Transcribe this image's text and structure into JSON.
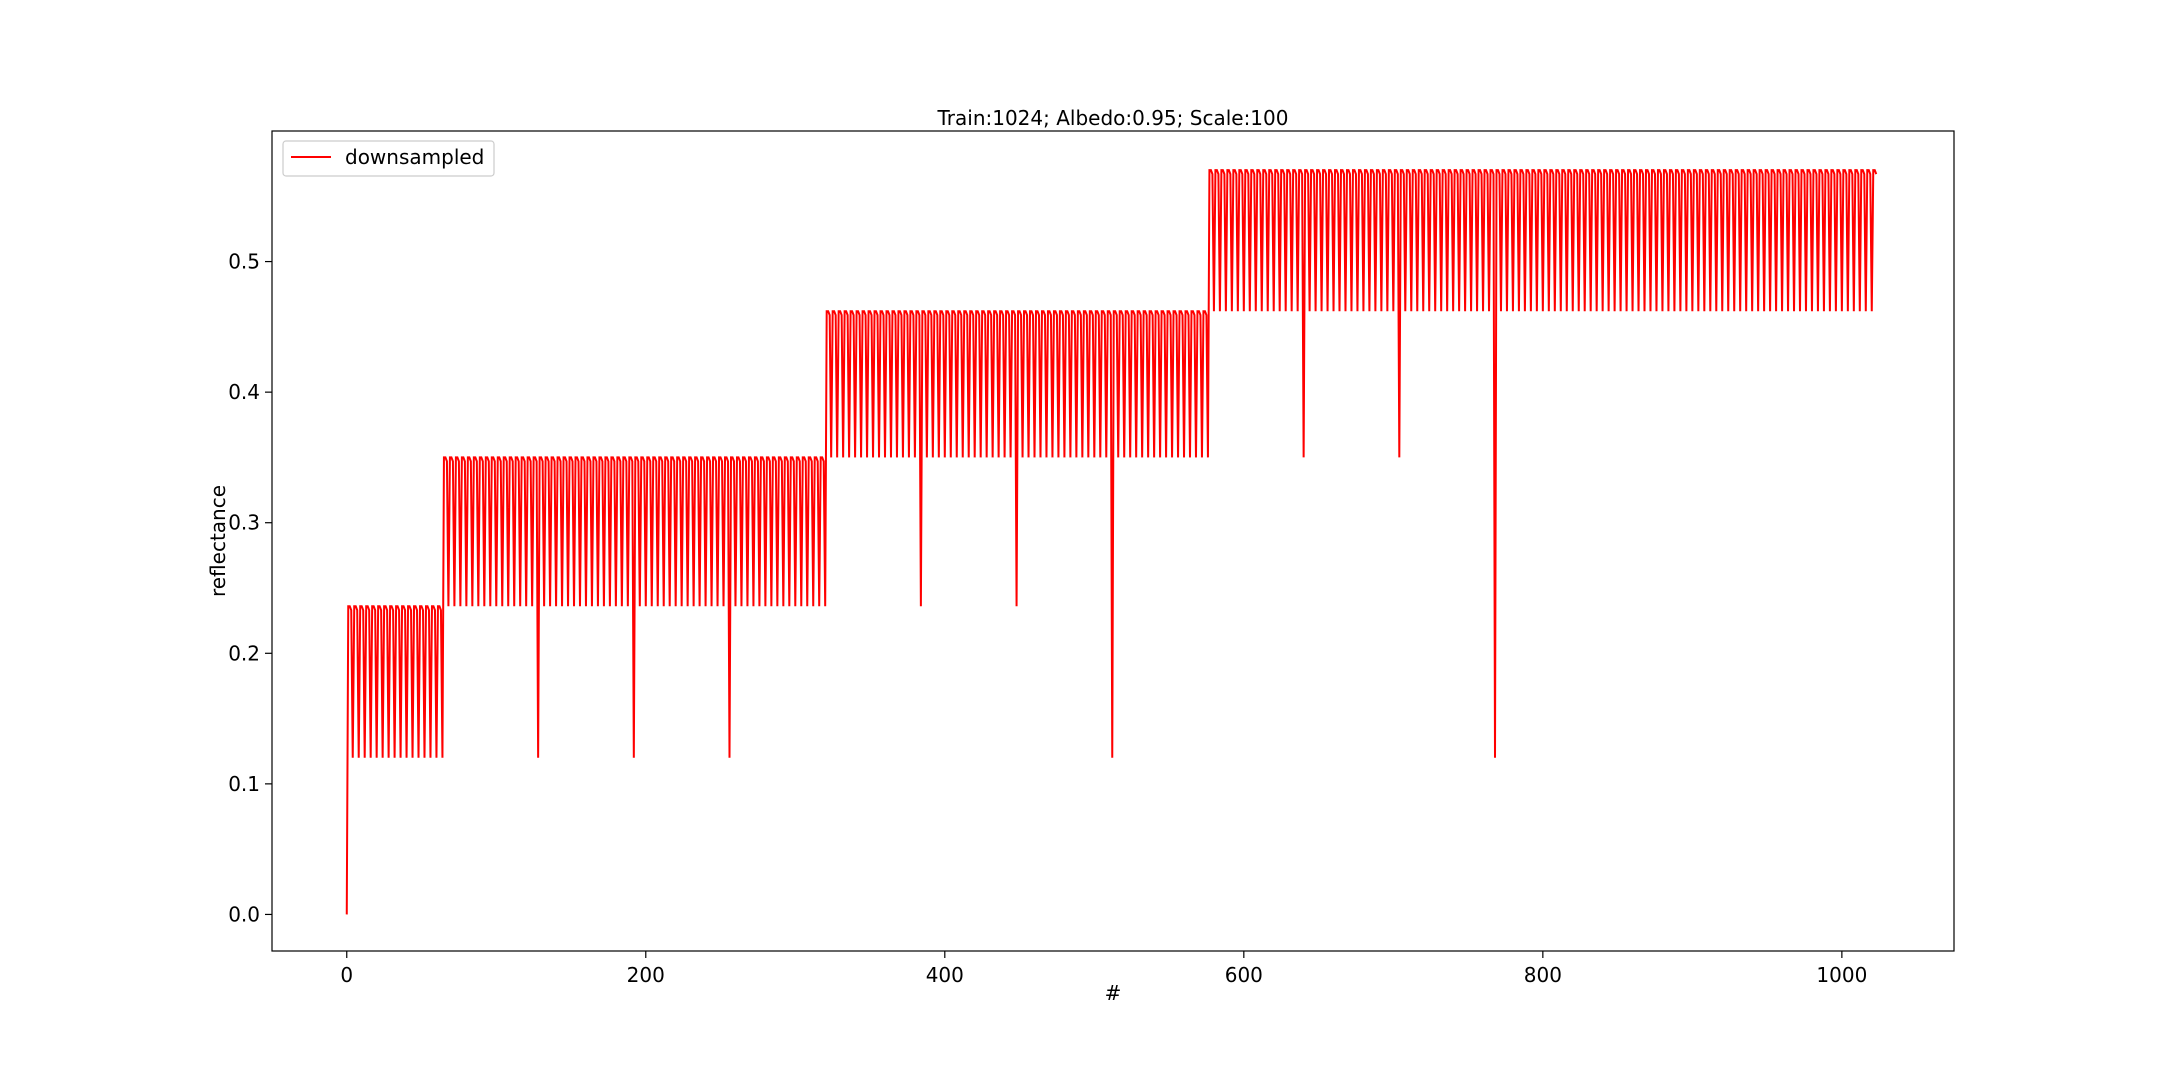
{
  "chart_data": {
    "type": "line",
    "title": "Train:1024; Albedo:0.95; Scale:100",
    "xlabel": "#",
    "ylabel": "reflectance",
    "xlim": [
      -50,
      1075
    ],
    "ylim": [
      -0.028,
      0.6
    ],
    "xticks": [
      0,
      200,
      400,
      600,
      800,
      1000
    ],
    "yticks": [
      0.0,
      0.1,
      0.2,
      0.3,
      0.4,
      0.5
    ],
    "xtick_labels": [
      "0",
      "200",
      "400",
      "600",
      "800",
      "1000"
    ],
    "ytick_labels": [
      "0.0",
      "0.1",
      "0.2",
      "0.3",
      "0.4",
      "0.5"
    ],
    "grid": false,
    "legend_position": "top-left",
    "series": [
      {
        "name": "downsampled",
        "color": "#ff0000",
        "n_points": 1024,
        "structure": "hierarchical 4-level pattern over 1024 samples: base level by index/256, mid level by (index mod 256)/64, fine level by (index mod 64)/16, oscillating between ~level high and ~level low within each 4-sample group, with deep dips at block boundaries",
        "levels": [
          0.12,
          0.236,
          0.35,
          0.462,
          0.57
        ],
        "start_value": 0.0
      }
    ]
  }
}
